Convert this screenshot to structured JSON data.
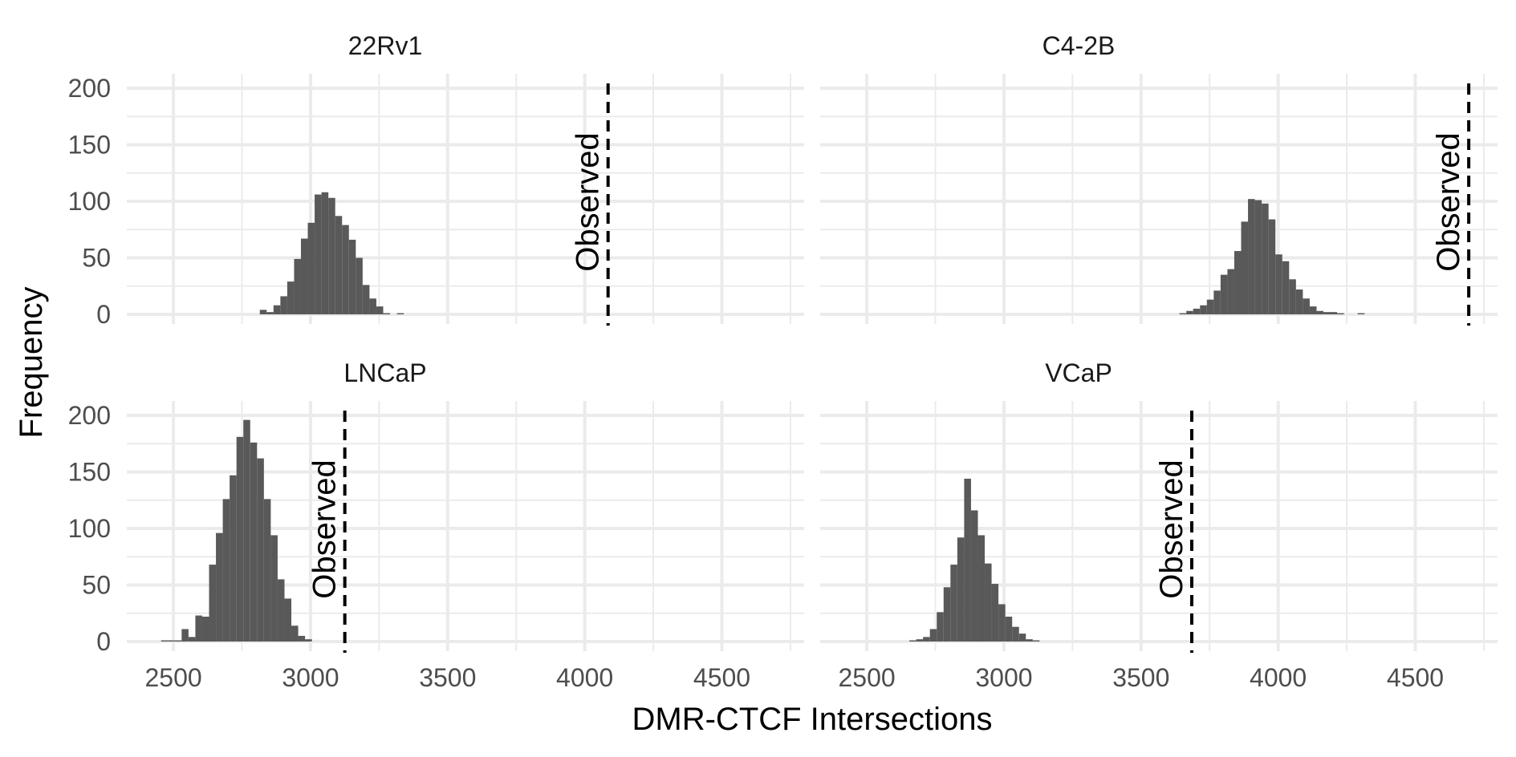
{
  "chart_data": {
    "type": "histogram",
    "xlabel": "DMR-CTCF Intersections",
    "ylabel": "Frequency",
    "xlim": [
      2330,
      4800
    ],
    "ylim": [
      0,
      210
    ],
    "x_ticks": [
      2500,
      3000,
      3500,
      4000,
      4500
    ],
    "y_ticks": [
      0,
      50,
      100,
      150,
      200
    ],
    "grid": true,
    "bar_color": "#595959",
    "bin_width": 25,
    "observed_label": "Observed",
    "panels": [
      {
        "title": "22Rv1",
        "observed": 4085,
        "bins": [
          [
            2815,
            4
          ],
          [
            2840,
            2
          ],
          [
            2865,
            8
          ],
          [
            2890,
            16
          ],
          [
            2915,
            29
          ],
          [
            2940,
            49
          ],
          [
            2965,
            67
          ],
          [
            2990,
            81
          ],
          [
            3015,
            106
          ],
          [
            3040,
            108
          ],
          [
            3065,
            103
          ],
          [
            3090,
            87
          ],
          [
            3115,
            79
          ],
          [
            3140,
            66
          ],
          [
            3165,
            50
          ],
          [
            3190,
            26
          ],
          [
            3215,
            14
          ],
          [
            3240,
            7
          ],
          [
            3265,
            1
          ],
          [
            3290,
            0
          ],
          [
            3315,
            1
          ]
        ]
      },
      {
        "title": "C4-2B",
        "observed": 4695,
        "bins": [
          [
            3640,
            1
          ],
          [
            3665,
            3
          ],
          [
            3690,
            5
          ],
          [
            3715,
            8
          ],
          [
            3740,
            13
          ],
          [
            3765,
            21
          ],
          [
            3790,
            35
          ],
          [
            3815,
            40
          ],
          [
            3840,
            56
          ],
          [
            3865,
            82
          ],
          [
            3890,
            102
          ],
          [
            3915,
            101
          ],
          [
            3940,
            98
          ],
          [
            3965,
            84
          ],
          [
            3990,
            53
          ],
          [
            4015,
            47
          ],
          [
            4040,
            31
          ],
          [
            4065,
            22
          ],
          [
            4090,
            14
          ],
          [
            4115,
            7
          ],
          [
            4140,
            3
          ],
          [
            4165,
            2
          ],
          [
            4190,
            2
          ],
          [
            4215,
            1
          ],
          [
            4240,
            0
          ],
          [
            4265,
            0
          ],
          [
            4290,
            1
          ]
        ]
      },
      {
        "title": "LNCaP",
        "observed": 3125,
        "bins": [
          [
            2455,
            1
          ],
          [
            2480,
            1
          ],
          [
            2505,
            1
          ],
          [
            2530,
            11
          ],
          [
            2555,
            4
          ],
          [
            2580,
            23
          ],
          [
            2605,
            22
          ],
          [
            2630,
            68
          ],
          [
            2655,
            96
          ],
          [
            2680,
            126
          ],
          [
            2705,
            147
          ],
          [
            2730,
            181
          ],
          [
            2755,
            196
          ],
          [
            2780,
            176
          ],
          [
            2805,
            162
          ],
          [
            2830,
            126
          ],
          [
            2855,
            94
          ],
          [
            2880,
            55
          ],
          [
            2905,
            38
          ],
          [
            2930,
            14
          ],
          [
            2955,
            5
          ],
          [
            2980,
            2
          ]
        ]
      },
      {
        "title": "VCaP",
        "observed": 3685,
        "bins": [
          [
            2655,
            1
          ],
          [
            2680,
            2
          ],
          [
            2705,
            4
          ],
          [
            2730,
            11
          ],
          [
            2755,
            26
          ],
          [
            2780,
            48
          ],
          [
            2805,
            68
          ],
          [
            2830,
            92
          ],
          [
            2855,
            144
          ],
          [
            2880,
            116
          ],
          [
            2905,
            94
          ],
          [
            2930,
            69
          ],
          [
            2955,
            51
          ],
          [
            2980,
            33
          ],
          [
            3005,
            22
          ],
          [
            3030,
            13
          ],
          [
            3055,
            7
          ],
          [
            3080,
            2
          ],
          [
            3105,
            1
          ]
        ]
      }
    ]
  }
}
